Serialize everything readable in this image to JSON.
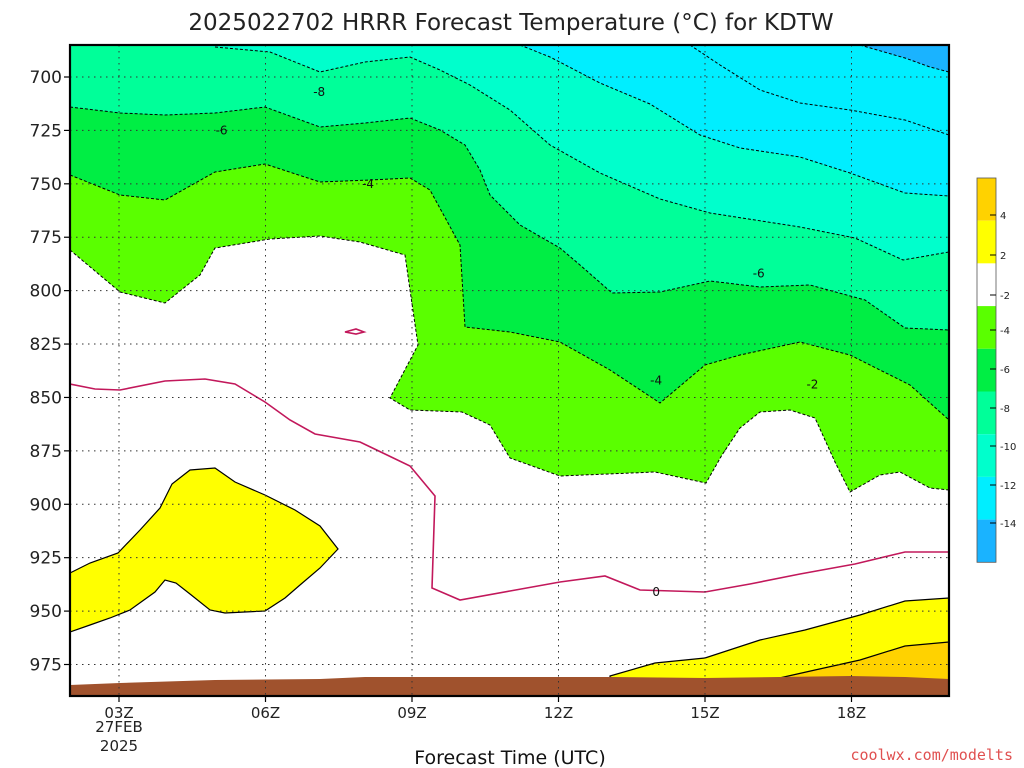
{
  "chart_data": {
    "type": "heatmap",
    "title": "2025022702 HRRR Forecast Temperature (°C) for KDTW",
    "xlabel": "Forecast Time (UTC)",
    "ylabel": "",
    "y_ticks": [
      "700",
      "725",
      "750",
      "775",
      "800",
      "825",
      "850",
      "875",
      "900",
      "925",
      "950",
      "975"
    ],
    "x_ticks": [
      "03Z",
      "06Z",
      "09Z",
      "12Z",
      "15Z",
      "18Z"
    ],
    "x_date_label": [
      "27FEB",
      "2025"
    ],
    "colorbar": {
      "labels": [
        "4",
        "2",
        "-2",
        "-4",
        "-6",
        "-8",
        "-10",
        "-12",
        "-14"
      ],
      "colors": [
        "#ffd200",
        "#ffff00",
        "#ffffff",
        "#5aff00",
        "#00ee44",
        "#00ff99",
        "#00ffcc",
        "#00eeff",
        "#1ab3ff"
      ]
    },
    "contour_labels": [
      {
        "text": "-8",
        "time": 7.1,
        "pressure": 707
      },
      {
        "text": "-6",
        "time": 5.1,
        "pressure": 725
      },
      {
        "text": "-4",
        "time": 8.1,
        "pressure": 750
      },
      {
        "text": "-6",
        "time": 16.1,
        "pressure": 792
      },
      {
        "text": "-4",
        "time": 14.0,
        "pressure": 842
      },
      {
        "text": "-2",
        "time": 17.2,
        "pressure": 844
      },
      {
        "text": "0",
        "time": 14.0,
        "pressure": 941
      }
    ]
  },
  "credit": "coolwx.com/modelts"
}
